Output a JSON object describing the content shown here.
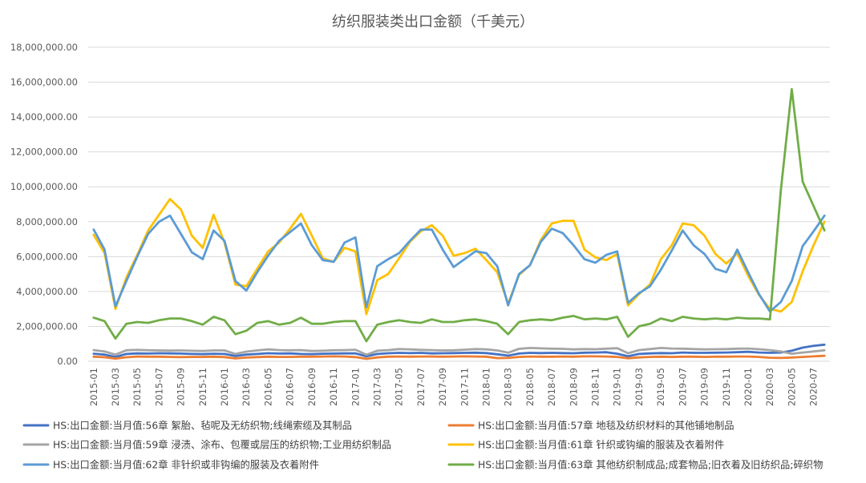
{
  "chart_data": {
    "type": "line",
    "title": "纺织服装类出口金额（千美元）",
    "ylim": [
      0,
      18000000
    ],
    "y_ticks": [
      "0.00",
      "2,000,000.00",
      "4,000,000.00",
      "6,000,000.00",
      "8,000,000.00",
      "10,000,000.00",
      "12,000,000.00",
      "14,000,000.00",
      "16,000,000.00",
      "18,000,000.00"
    ],
    "grid": "horizontal",
    "legend_position": "bottom",
    "x": [
      "2015-01",
      "2015-02",
      "2015-03",
      "2015-04",
      "2015-05",
      "2015-06",
      "2015-07",
      "2015-08",
      "2015-09",
      "2015-10",
      "2015-11",
      "2015-12",
      "2016-01",
      "2016-02",
      "2016-03",
      "2016-04",
      "2016-05",
      "2016-06",
      "2016-07",
      "2016-08",
      "2016-09",
      "2016-10",
      "2016-11",
      "2016-12",
      "2017-01",
      "2017-02",
      "2017-03",
      "2017-04",
      "2017-05",
      "2017-06",
      "2017-07",
      "2017-08",
      "2017-09",
      "2017-10",
      "2017-11",
      "2017-12",
      "2018-01",
      "2018-02",
      "2018-03",
      "2018-04",
      "2018-05",
      "2018-06",
      "2018-07",
      "2018-08",
      "2018-09",
      "2018-10",
      "2018-11",
      "2018-12",
      "2019-01",
      "2019-02",
      "2019-03",
      "2019-04",
      "2019-05",
      "2019-06",
      "2019-07",
      "2019-08",
      "2019-09",
      "2019-10",
      "2019-11",
      "2019-12",
      "2020-01",
      "2020-02",
      "2020-03",
      "2020-04",
      "2020-05",
      "2020-06",
      "2020-07",
      "2020-08"
    ],
    "x_tick_labels": [
      "2015-01",
      "2015-03",
      "2015-05",
      "2015-07",
      "2015-09",
      "2015-11",
      "2016-01",
      "2016-03",
      "2016-05",
      "2016-07",
      "2016-09",
      "2016-11",
      "2017-01",
      "2017-03",
      "2017-05",
      "2017-07",
      "2017-09",
      "2017-11",
      "2018-01",
      "2018-03",
      "2018-05",
      "2018-07",
      "2018-09",
      "2018-11",
      "2019-01",
      "2019-03",
      "2019-05",
      "2019-07",
      "2019-09",
      "2019-11",
      "2020-01",
      "2020-03",
      "2020-05",
      "2020-07"
    ],
    "series": [
      {
        "name": "HS:出口金额:当月值:56章 絮胎、毡呢及无纺织物;线绳索缆及其制品",
        "color": "#4472c4",
        "values": [
          430000,
          380000,
          250000,
          420000,
          450000,
          440000,
          460000,
          450000,
          440000,
          420000,
          410000,
          430000,
          420000,
          300000,
          380000,
          420000,
          460000,
          440000,
          450000,
          420000,
          410000,
          430000,
          440000,
          450000,
          450000,
          280000,
          420000,
          460000,
          480000,
          470000,
          480000,
          450000,
          460000,
          470000,
          480000,
          490000,
          470000,
          400000,
          320000,
          440000,
          480000,
          470000,
          480000,
          470000,
          460000,
          490000,
          500000,
          520000,
          430000,
          290000,
          420000,
          450000,
          470000,
          460000,
          500000,
          480000,
          480000,
          490000,
          500000,
          520000,
          540000,
          500000,
          480000,
          500000,
          600000,
          780000,
          880000,
          950000
        ]
      },
      {
        "name": "HS:出口金额:当月值:57章 地毯及纺织材料的其他铺地制品",
        "color": "#ed7d31",
        "values": [
          260000,
          230000,
          150000,
          230000,
          270000,
          260000,
          260000,
          250000,
          240000,
          250000,
          250000,
          260000,
          240000,
          160000,
          210000,
          240000,
          260000,
          250000,
          250000,
          260000,
          260000,
          270000,
          280000,
          270000,
          240000,
          140000,
          220000,
          260000,
          270000,
          260000,
          270000,
          270000,
          260000,
          270000,
          280000,
          270000,
          260000,
          180000,
          190000,
          250000,
          270000,
          260000,
          260000,
          270000,
          260000,
          280000,
          280000,
          270000,
          250000,
          170000,
          220000,
          250000,
          260000,
          250000,
          260000,
          260000,
          250000,
          260000,
          260000,
          270000,
          270000,
          250000,
          200000,
          190000,
          210000,
          250000,
          280000,
          310000
        ]
      },
      {
        "name": "HS:出口金额:当月值:59章 浸渍、涂布、包覆或层压的纺织物;工业用纺织制品",
        "color": "#a5a5a5",
        "values": [
          640000,
          560000,
          380000,
          630000,
          650000,
          630000,
          620000,
          610000,
          620000,
          600000,
          590000,
          620000,
          620000,
          420000,
          550000,
          620000,
          680000,
          640000,
          630000,
          640000,
          590000,
          600000,
          630000,
          640000,
          660000,
          370000,
          600000,
          640000,
          700000,
          680000,
          650000,
          640000,
          620000,
          630000,
          660000,
          700000,
          680000,
          620000,
          490000,
          710000,
          760000,
          740000,
          720000,
          710000,
          680000,
          700000,
          690000,
          720000,
          750000,
          460000,
          640000,
          700000,
          760000,
          730000,
          720000,
          700000,
          680000,
          690000,
          700000,
          720000,
          730000,
          690000,
          640000,
          560000,
          430000,
          500000,
          560000,
          630000
        ]
      },
      {
        "name": "HS:出口金额:当月值:61章 针织或钩编的服装及衣着附件",
        "color": "#ffc000",
        "values": [
          7250000,
          6200000,
          3000000,
          4800000,
          6100000,
          7500000,
          8400000,
          9300000,
          8700000,
          7200000,
          6500000,
          8400000,
          6800000,
          4400000,
          4300000,
          5300000,
          6300000,
          6800000,
          7600000,
          8450000,
          7200000,
          5900000,
          5700000,
          6500000,
          6300000,
          2700000,
          4650000,
          5000000,
          5900000,
          6850000,
          7450000,
          7800000,
          7200000,
          6050000,
          6200000,
          6450000,
          5800000,
          5100000,
          3300000,
          4950000,
          5500000,
          6950000,
          7900000,
          8050000,
          8050000,
          6400000,
          5950000,
          5800000,
          6150000,
          3200000,
          3850000,
          4400000,
          5850000,
          6650000,
          7900000,
          7800000,
          7200000,
          6150000,
          5600000,
          6200000,
          4900000,
          3800000,
          3000000,
          2850000,
          3400000,
          5150000,
          6650000,
          8000000
        ]
      },
      {
        "name": "HS:出口金额:当月值:62章 非针织或非钩编的服装及衣着附件",
        "color": "#5b9bd5",
        "values": [
          7550000,
          6400000,
          3150000,
          4600000,
          6000000,
          7300000,
          8000000,
          8350000,
          7300000,
          6250000,
          5850000,
          7500000,
          6900000,
          4600000,
          4050000,
          5100000,
          6050000,
          6900000,
          7400000,
          7900000,
          6650000,
          5800000,
          5700000,
          6800000,
          7100000,
          3100000,
          5450000,
          5850000,
          6200000,
          6900000,
          7550000,
          7550000,
          6400000,
          5400000,
          5850000,
          6300000,
          6200000,
          5450000,
          3200000,
          5000000,
          5500000,
          6850000,
          7600000,
          7350000,
          6650000,
          5850000,
          5650000,
          6100000,
          6300000,
          3350000,
          3900000,
          4300000,
          5250000,
          6350000,
          7500000,
          6650000,
          6150000,
          5300000,
          5100000,
          6400000,
          5100000,
          3850000,
          2850000,
          3400000,
          4600000,
          6600000,
          7450000,
          8350000
        ]
      },
      {
        "name": "HS:出口金额:当月值:63章 其他纺织制成品;成套物品;旧衣着及旧纺织品;碎织物",
        "color": "#70ad47",
        "values": [
          2500000,
          2300000,
          1300000,
          2150000,
          2250000,
          2200000,
          2350000,
          2450000,
          2450000,
          2300000,
          2100000,
          2550000,
          2350000,
          1550000,
          1750000,
          2200000,
          2300000,
          2100000,
          2200000,
          2500000,
          2150000,
          2150000,
          2250000,
          2300000,
          2300000,
          1150000,
          2100000,
          2250000,
          2350000,
          2250000,
          2200000,
          2400000,
          2250000,
          2250000,
          2350000,
          2400000,
          2300000,
          2150000,
          1550000,
          2250000,
          2350000,
          2400000,
          2350000,
          2500000,
          2600000,
          2400000,
          2450000,
          2400000,
          2550000,
          1400000,
          2000000,
          2150000,
          2450000,
          2300000,
          2550000,
          2450000,
          2400000,
          2450000,
          2400000,
          2500000,
          2450000,
          2450000,
          2400000,
          9800000,
          15600000,
          10300000,
          8900000,
          7500000
        ]
      }
    ]
  }
}
